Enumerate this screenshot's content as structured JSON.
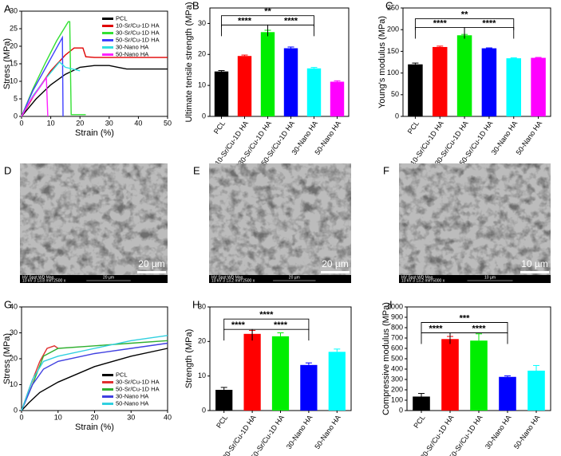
{
  "chart_data": [
    {
      "type": "line",
      "panel": "A",
      "xlabel": "Strain (%)",
      "ylabel": "Stress (MPa)",
      "xlim": [
        0,
        50
      ],
      "xticks": [
        0,
        10,
        20,
        30,
        40,
        50
      ],
      "ylim": [
        0,
        30
      ],
      "yticks": [
        0,
        5,
        10,
        15,
        20,
        25,
        30
      ],
      "legend": "upper right",
      "series": [
        {
          "name": "PCL",
          "color": "#000000",
          "x": [
            0,
            5,
            10,
            15,
            20,
            25,
            30,
            33,
            36,
            40,
            50
          ],
          "values": [
            0,
            5,
            9,
            12,
            14,
            14.5,
            14.5,
            14,
            13.5,
            13.5,
            13.5
          ]
        },
        {
          "name": "10-Sr/Cu-1D HA",
          "color": "#e00000",
          "x": [
            0,
            5,
            10,
            15,
            18,
            21,
            22,
            25,
            50
          ],
          "values": [
            0,
            7,
            13,
            17.5,
            19.5,
            19.5,
            17,
            16.8,
            16.8
          ]
        },
        {
          "name": "30-Sr/Cu-1D HA",
          "color": "#33e033",
          "x": [
            0,
            4,
            8,
            12,
            16,
            16.5,
            17,
            22
          ],
          "values": [
            0,
            8,
            15,
            21.5,
            27,
            27,
            0.5,
            0.5
          ]
        },
        {
          "name": "50-Sr/Cu-1D HA",
          "color": "#4040ff",
          "x": [
            0,
            4,
            8,
            12,
            14,
            14.2
          ],
          "values": [
            0,
            7.5,
            13.5,
            19.5,
            22.5,
            0
          ]
        },
        {
          "name": "30-Nano HA",
          "color": "#30e0e0",
          "x": [
            0,
            4,
            8,
            12,
            13,
            15,
            20
          ],
          "values": [
            0,
            6,
            10.5,
            14.5,
            15.5,
            14,
            13
          ]
        },
        {
          "name": "50-Nano HA",
          "color": "#ff20ff",
          "x": [
            0,
            3,
            6,
            8.5,
            9
          ],
          "values": [
            0,
            4.5,
            8,
            11,
            0
          ]
        }
      ]
    },
    {
      "type": "bar",
      "panel": "B",
      "ylabel": "Ultimate tensile strength (MPa)",
      "categories": [
        "PCL",
        "10-Sr/Cu-1D HA",
        "30-Sr/Cu-1D HA",
        "50-Sr/Cu-1D HA",
        "30-Nano HA",
        "50-Nano HA"
      ],
      "values": [
        14.5,
        19.5,
        27.2,
        22,
        15.5,
        11.2
      ],
      "errors": [
        0.3,
        0.3,
        0.6,
        0.4,
        0.3,
        0.3
      ],
      "colors": [
        "#000000",
        "#ff0000",
        "#00ee00",
        "#0000ff",
        "#00ffff",
        "#ff00ff"
      ],
      "ylim": [
        0,
        35
      ],
      "yticks": [
        0,
        10,
        20,
        30
      ],
      "annotations": [
        {
          "text": "**",
          "from": 0,
          "to": 4,
          "y": 32.5
        },
        {
          "text": "****",
          "from": 0,
          "to": 2,
          "y": 29.5
        },
        {
          "text": "****",
          "from": 2,
          "to": 4,
          "y": 29.5
        }
      ]
    },
    {
      "type": "bar",
      "panel": "C",
      "ylabel": "Young's modulus (MPa)",
      "categories": [
        "PCL",
        "10-Sr/Cu-1D HA",
        "30-Sr/Cu-1D HA",
        "50-Sr/Cu-1D HA",
        "30-Nano HA",
        "50-Nano HA"
      ],
      "values": [
        120,
        160,
        187,
        157,
        134,
        135
      ],
      "errors": [
        3,
        2,
        2,
        1,
        1,
        1
      ],
      "colors": [
        "#000000",
        "#ff0000",
        "#00ee00",
        "#0000ff",
        "#00ffff",
        "#ff00ff"
      ],
      "ylim": [
        0,
        250
      ],
      "yticks": [
        0,
        50,
        100,
        150,
        200,
        250
      ],
      "annotations": [
        {
          "text": "**",
          "from": 0,
          "to": 4,
          "y": 225
        },
        {
          "text": "****",
          "from": 0,
          "to": 2,
          "y": 205
        },
        {
          "text": "****",
          "from": 2,
          "to": 4,
          "y": 205
        }
      ]
    },
    {
      "type": "line",
      "panel": "G",
      "xlabel": "Strain (%)",
      "ylabel": "Stress (MPa)",
      "xlim": [
        0,
        40
      ],
      "xticks": [
        0,
        10,
        20,
        30,
        40
      ],
      "ylim": [
        0,
        40
      ],
      "yticks": [
        0,
        10,
        20,
        30,
        40
      ],
      "legend": "lower right",
      "series": [
        {
          "name": "PCL",
          "color": "#000000",
          "x": [
            0,
            2,
            5,
            10,
            20,
            30,
            40
          ],
          "values": [
            0,
            3,
            7,
            11,
            17,
            21,
            24
          ]
        },
        {
          "name": "30-Sr/Cu-1D HA",
          "color": "#e03030",
          "x": [
            0,
            2,
            5,
            7,
            9,
            10
          ],
          "values": [
            0,
            8,
            19,
            24,
            25,
            24
          ]
        },
        {
          "name": "50-Sr/Cu-1D HA",
          "color": "#30b030",
          "x": [
            0,
            3,
            6,
            10,
            20,
            30,
            40
          ],
          "values": [
            0,
            10,
            21,
            24,
            25,
            26,
            27
          ]
        },
        {
          "name": "30-Nano HA",
          "color": "#4040e0",
          "x": [
            0,
            3,
            6,
            10,
            20,
            30,
            40
          ],
          "values": [
            0,
            10,
            16,
            19,
            22,
            24,
            26
          ]
        },
        {
          "name": "50-Nano HA",
          "color": "#30d0e0",
          "x": [
            0,
            3,
            6,
            10,
            20,
            30,
            40
          ],
          "values": [
            0,
            12,
            19,
            21,
            24,
            27,
            29
          ]
        }
      ]
    },
    {
      "type": "bar",
      "panel": "H",
      "ylabel": "Strength (MPa)",
      "categories": [
        "PCL",
        "30-Sr/Cu-1D HA",
        "50-Sr/Cu-1D HA",
        "30-Nano HA",
        "50-Nano HA"
      ],
      "values": [
        6,
        22.2,
        21.5,
        13.2,
        17
      ],
      "errors": [
        0.7,
        1,
        1,
        0.6,
        0.8
      ],
      "colors": [
        "#000000",
        "#ff0000",
        "#00ee00",
        "#0000ff",
        "#00ffff"
      ],
      "ylim": [
        0,
        30
      ],
      "yticks": [
        0,
        10,
        20,
        30
      ],
      "annotations": [
        {
          "text": "****",
          "from": 0,
          "to": 3,
          "y": 26.5
        },
        {
          "text": "****",
          "from": 0,
          "to": 1,
          "y": 23.5
        },
        {
          "text": "****",
          "from": 1,
          "to": 3,
          "y": 23.5
        }
      ]
    },
    {
      "type": "bar",
      "panel": "I",
      "ylabel": "Compressive modulus (MPa)",
      "categories": [
        "PCL",
        "30-Sr/Cu-1D HA",
        "50-Sr/Cu-1D HA",
        "30-Nano HA",
        "50-Nano HA"
      ],
      "values": [
        135,
        690,
        675,
        325,
        385
      ],
      "errors": [
        30,
        25,
        65,
        10,
        50
      ],
      "colors": [
        "#000000",
        "#ff0000",
        "#00ee00",
        "#0000ff",
        "#00ffff"
      ],
      "ylim": [
        0,
        1000
      ],
      "yticks": [
        0,
        100,
        200,
        300,
        400,
        500,
        600,
        700,
        800,
        900,
        1000
      ],
      "annotations": [
        {
          "text": "***",
          "from": 0,
          "to": 3,
          "y": 850
        },
        {
          "text": "****",
          "from": 0,
          "to": 1,
          "y": 750
        },
        {
          "text": "****",
          "from": 1,
          "to": 3,
          "y": 750
        }
      ]
    }
  ],
  "images": [
    {
      "panel": "D",
      "scale": "20 µm",
      "header": "HV  Spot  WD  Mag",
      "info": "10 kV  3  13.8 mm  2500 x",
      "ruler": "20 µm"
    },
    {
      "panel": "E",
      "scale": "20 µm",
      "header": "HV  Spot  WD  Mag",
      "info": "10 kV  3  13.2 mm  2500 x",
      "ruler": "20 µm"
    },
    {
      "panel": "F",
      "scale": "10 µm",
      "header": "HV  Spot  WD  Mag",
      "info": "10 kV  3  13.2 mm  5000 x",
      "ruler": "10 µm"
    }
  ]
}
